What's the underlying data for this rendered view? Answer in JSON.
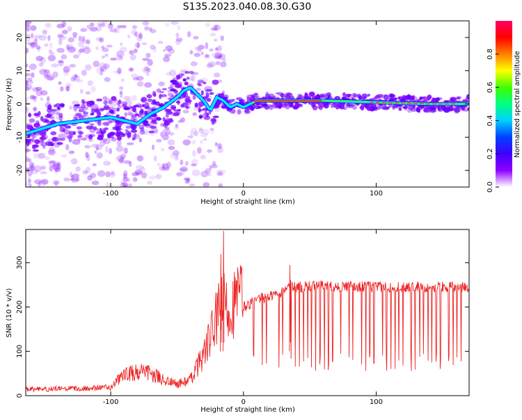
{
  "figure": {
    "title": "S135.2023.040.08.30.G30"
  },
  "chart_data": [
    {
      "type": "heatmap",
      "xlabel": "Height of straight line (km)",
      "ylabel": "Frequency (Hz)",
      "xlim": [
        -164,
        170
      ],
      "ylim": [
        -25,
        25
      ],
      "xticks": [
        -100,
        0,
        100
      ],
      "yticks": [
        -20,
        -10,
        0,
        10,
        20
      ],
      "colorbar": {
        "label": "Normalized spectral amplitude",
        "range": [
          0,
          1
        ],
        "ticks": [
          "0.0",
          "0.2",
          "0.4",
          "0.6",
          "0.8"
        ],
        "colors": [
          "#ffffff",
          "#8f00ff",
          "#3f00ff",
          "#0040ff",
          "#00d0ff",
          "#00ff80",
          "#40ff00",
          "#ffff00",
          "#ff8000",
          "#ff0000",
          "#ff0066"
        ]
      },
      "ridge": {
        "description_points_x": [
          -164,
          -140,
          -120,
          -100,
          -90,
          -80,
          -70,
          -60,
          -50,
          -45,
          -40,
          -35,
          -30,
          -25,
          -20,
          -15,
          -10,
          -5,
          0,
          10,
          30,
          60,
          100,
          140,
          170
        ],
        "description_points_y": [
          -9,
          -6,
          -5,
          -4,
          -5,
          -6,
          -3,
          -1,
          2,
          4,
          5,
          3,
          1,
          -2,
          2,
          1,
          -1,
          0,
          -1,
          1,
          1,
          1,
          0.5,
          0,
          0
        ]
      },
      "grid": false
    },
    {
      "type": "line",
      "xlabel": "Height of straight line (km)",
      "ylabel": "SNR (10 * v/v)",
      "xlim": [
        -164,
        170
      ],
      "ylim": [
        0,
        375
      ],
      "xticks": [
        -100,
        0,
        100
      ],
      "yticks": [
        0,
        100,
        200,
        300
      ],
      "series": [
        {
          "color": "#ee2222",
          "envelope_x": [
            -164,
            -120,
            -100,
            -90,
            -80,
            -70,
            -60,
            -50,
            -40,
            -30,
            -25,
            -20,
            -15,
            -10,
            -5,
            0,
            10,
            20,
            30,
            35,
            40,
            60,
            100,
            140,
            170
          ],
          "envelope_y": [
            12,
            14,
            16,
            40,
            45,
            42,
            30,
            22,
            30,
            80,
            110,
            150,
            175,
            165,
            185,
            200,
            215,
            225,
            235,
            250,
            245,
            248,
            245,
            245,
            245
          ],
          "spikes": [
            {
              "x": -15,
              "y": 372
            },
            {
              "x": -17,
              "y": 320
            },
            {
              "x": 35,
              "y": 295
            }
          ]
        }
      ],
      "grid": false
    }
  ]
}
